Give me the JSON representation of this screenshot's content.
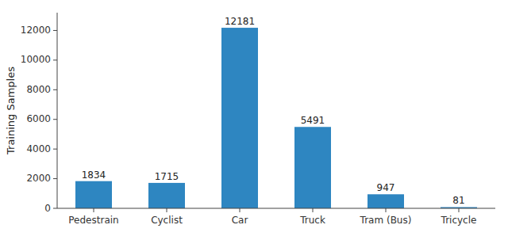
{
  "chart_data": {
    "type": "bar",
    "categories": [
      "Pedestrain",
      "Cyclist",
      "Car",
      "Truck",
      "Tram (Bus)",
      "Tricycle"
    ],
    "values": [
      1834,
      1715,
      12181,
      5491,
      947,
      81
    ],
    "color": "#2e86c1",
    "ylabel": "Training Samples",
    "ylim": [
      0,
      13200
    ],
    "yticks": [
      0,
      2000,
      4000,
      6000,
      8000,
      10000,
      12000
    ],
    "data_labels": true,
    "grid": false
  }
}
